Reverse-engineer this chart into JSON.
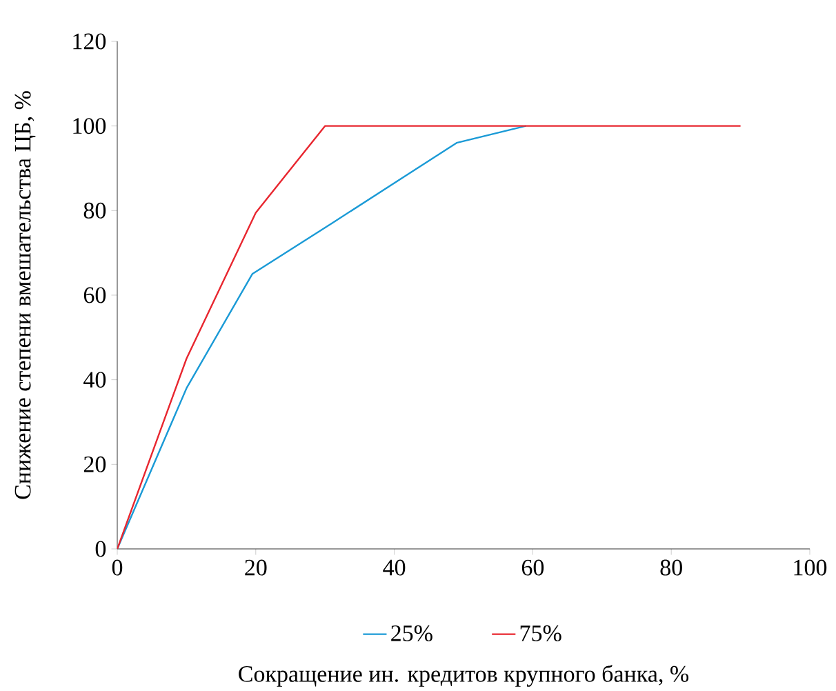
{
  "chart_data": {
    "type": "line",
    "xlabel": "Сокращение ин. кредитов крупного банка, %",
    "ylabel": "Снижение степени вмешательства ЦБ, %",
    "xlim": [
      0,
      100
    ],
    "ylim": [
      0,
      120
    ],
    "xticks": [
      0,
      20,
      40,
      60,
      80,
      100
    ],
    "yticks": [
      0,
      20,
      40,
      60,
      80,
      100,
      120
    ],
    "legend": "bottom",
    "grid": false,
    "series": [
      {
        "name": "25%",
        "color": "#1a9ad6",
        "x": [
          0,
          10,
          19.5,
          31,
          49,
          59
        ],
        "values": [
          0,
          38,
          65,
          77,
          96,
          100
        ]
      },
      {
        "name": "75%",
        "color": "#e8262f",
        "x": [
          0,
          10,
          20,
          30,
          90
        ],
        "values": [
          0,
          45,
          79.5,
          100,
          100
        ]
      }
    ]
  }
}
